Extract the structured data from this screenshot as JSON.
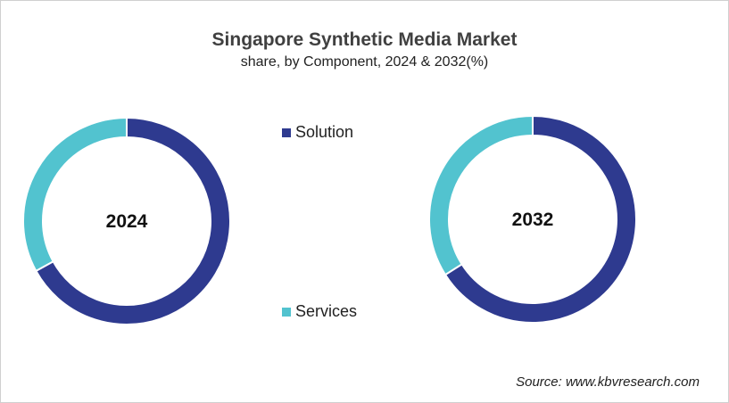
{
  "chart_data": {
    "type": "donut",
    "title": "Singapore Synthetic Media Market",
    "subtitle": "share, by Component, 2024 & 2032(%)",
    "legend": [
      "Solution",
      "Services"
    ],
    "legend_placement": "center",
    "colors": {
      "Solution": "#2e3a8f",
      "Services": "#52c3cf"
    },
    "charts": [
      {
        "label": "2024",
        "values": {
          "Solution": 67,
          "Services": 33
        }
      },
      {
        "label": "2032",
        "values": {
          "Solution": 66,
          "Services": 34
        }
      }
    ],
    "source": "Source: www.kbvresearch.com"
  }
}
